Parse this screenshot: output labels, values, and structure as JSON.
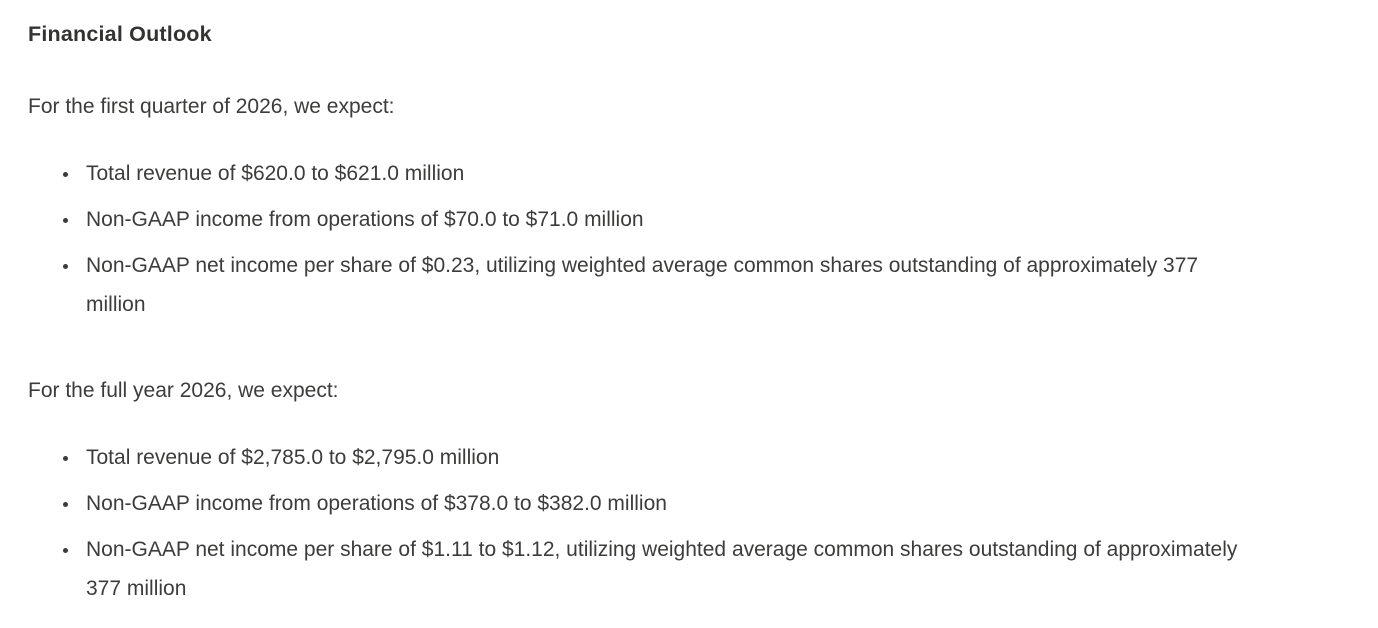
{
  "page": {
    "background_color": "#ffffff",
    "text_color": "#3c3c3b",
    "heading_color": "#333332"
  },
  "document": {
    "heading": "Financial Outlook",
    "sections": [
      {
        "intro": "For the first quarter of 2026, we expect:",
        "bullets": [
          "Total revenue of $620.0 to $621.0 million",
          "Non-GAAP income from operations of $70.0 to $71.0 million",
          "Non-GAAP net income per share of $0.23, utilizing weighted average common shares outstanding of approximately 377 million"
        ]
      },
      {
        "intro": "For the full year 2026, we expect:",
        "bullets": [
          "Total revenue of $2,785.0 to $2,795.0 million",
          "Non-GAAP income from operations of $378.0 to $382.0 million",
          "Non-GAAP net income per share of $1.11 to $1.12, utilizing weighted average common shares outstanding of approximately 377 million"
        ]
      }
    ]
  }
}
